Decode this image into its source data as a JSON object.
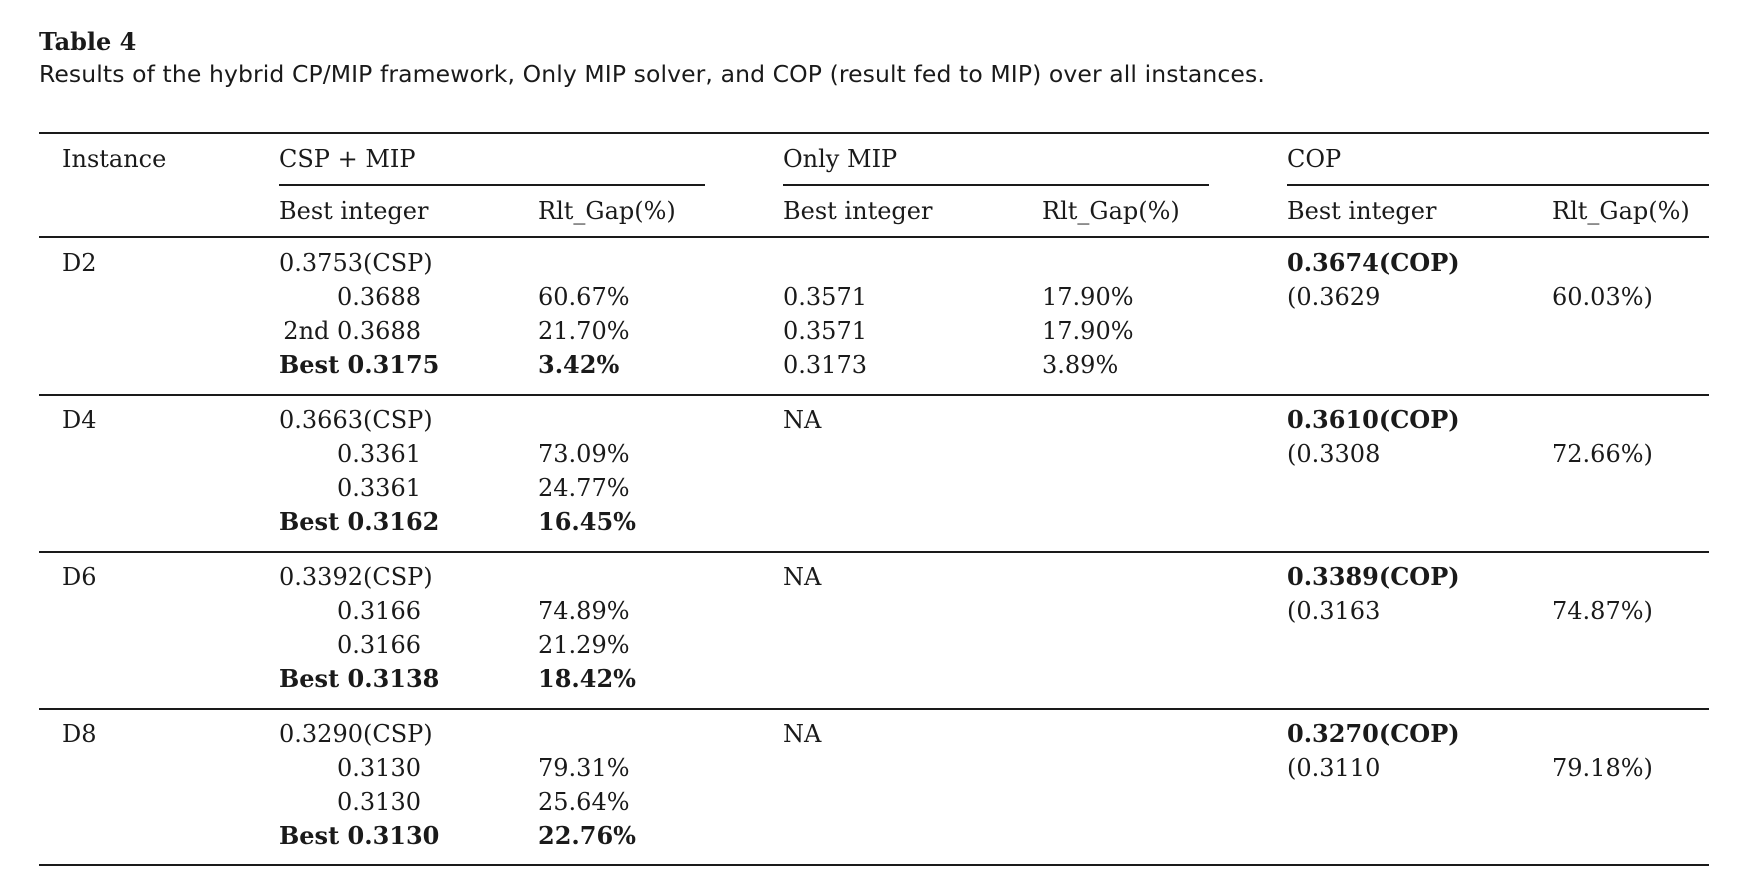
{
  "table": {
    "title": "Table 4",
    "caption": "Results of the hybrid CP/MIP framework, Only MIP solver, and COP (result fed to MIP) over all instances.",
    "headers": {
      "instance": "Instance",
      "csp_mip": "CSP + MIP",
      "only_mip": "Only MIP",
      "cop": "COP",
      "best_integer": "Best integer",
      "rlt_gap": "Rlt_Gap(%)"
    },
    "rows": [
      {
        "instance": "D2",
        "csp_mip": [
          {
            "best": "0.3753(CSP)",
            "gap": ""
          },
          {
            "best": "0.3688",
            "gap": "60.67%"
          },
          {
            "best": "2nd 0.3688",
            "gap": "21.70%"
          },
          {
            "best": "Best 0.3175",
            "gap": "3.42%"
          }
        ],
        "only_mip": [
          {
            "best": "",
            "gap": ""
          },
          {
            "best": "0.3571",
            "gap": "17.90%"
          },
          {
            "best": "0.3571",
            "gap": "17.90%"
          },
          {
            "best": "0.3173",
            "gap": "3.89%"
          }
        ],
        "cop": [
          {
            "best": "0.3674(COP)",
            "gap": ""
          },
          {
            "best": "(0.3629",
            "gap": "60.03%)"
          }
        ]
      },
      {
        "instance": "D4",
        "csp_mip": [
          {
            "best": "0.3663(CSP)",
            "gap": ""
          },
          {
            "best": "0.3361",
            "gap": "73.09%"
          },
          {
            "best": "0.3361",
            "gap": "24.77%"
          },
          {
            "best": "Best 0.3162",
            "gap": "16.45%"
          }
        ],
        "only_mip": [
          {
            "best": "NA",
            "gap": ""
          }
        ],
        "cop": [
          {
            "best": "0.3610(COP)",
            "gap": ""
          },
          {
            "best": "(0.3308",
            "gap": "72.66%)"
          }
        ]
      },
      {
        "instance": "D6",
        "csp_mip": [
          {
            "best": "0.3392(CSP)",
            "gap": ""
          },
          {
            "best": "0.3166",
            "gap": "74.89%"
          },
          {
            "best": "0.3166",
            "gap": "21.29%"
          },
          {
            "best": "Best 0.3138",
            "gap": "18.42%"
          }
        ],
        "only_mip": [
          {
            "best": "NA",
            "gap": ""
          }
        ],
        "cop": [
          {
            "best": "0.3389(COP)",
            "gap": ""
          },
          {
            "best": "(0.3163",
            "gap": "74.87%)"
          }
        ]
      },
      {
        "instance": "D8",
        "csp_mip": [
          {
            "best": "0.3290(CSP)",
            "gap": ""
          },
          {
            "best": "0.3130",
            "gap": "79.31%"
          },
          {
            "best": "0.3130",
            "gap": "25.64%"
          },
          {
            "best": "Best 0.3130",
            "gap": "22.76%"
          }
        ],
        "only_mip": [
          {
            "best": "NA",
            "gap": ""
          }
        ],
        "cop": [
          {
            "best": "0.3270(COP)",
            "gap": ""
          },
          {
            "best": "(0.3110",
            "gap": "79.18%)"
          }
        ]
      }
    ]
  }
}
